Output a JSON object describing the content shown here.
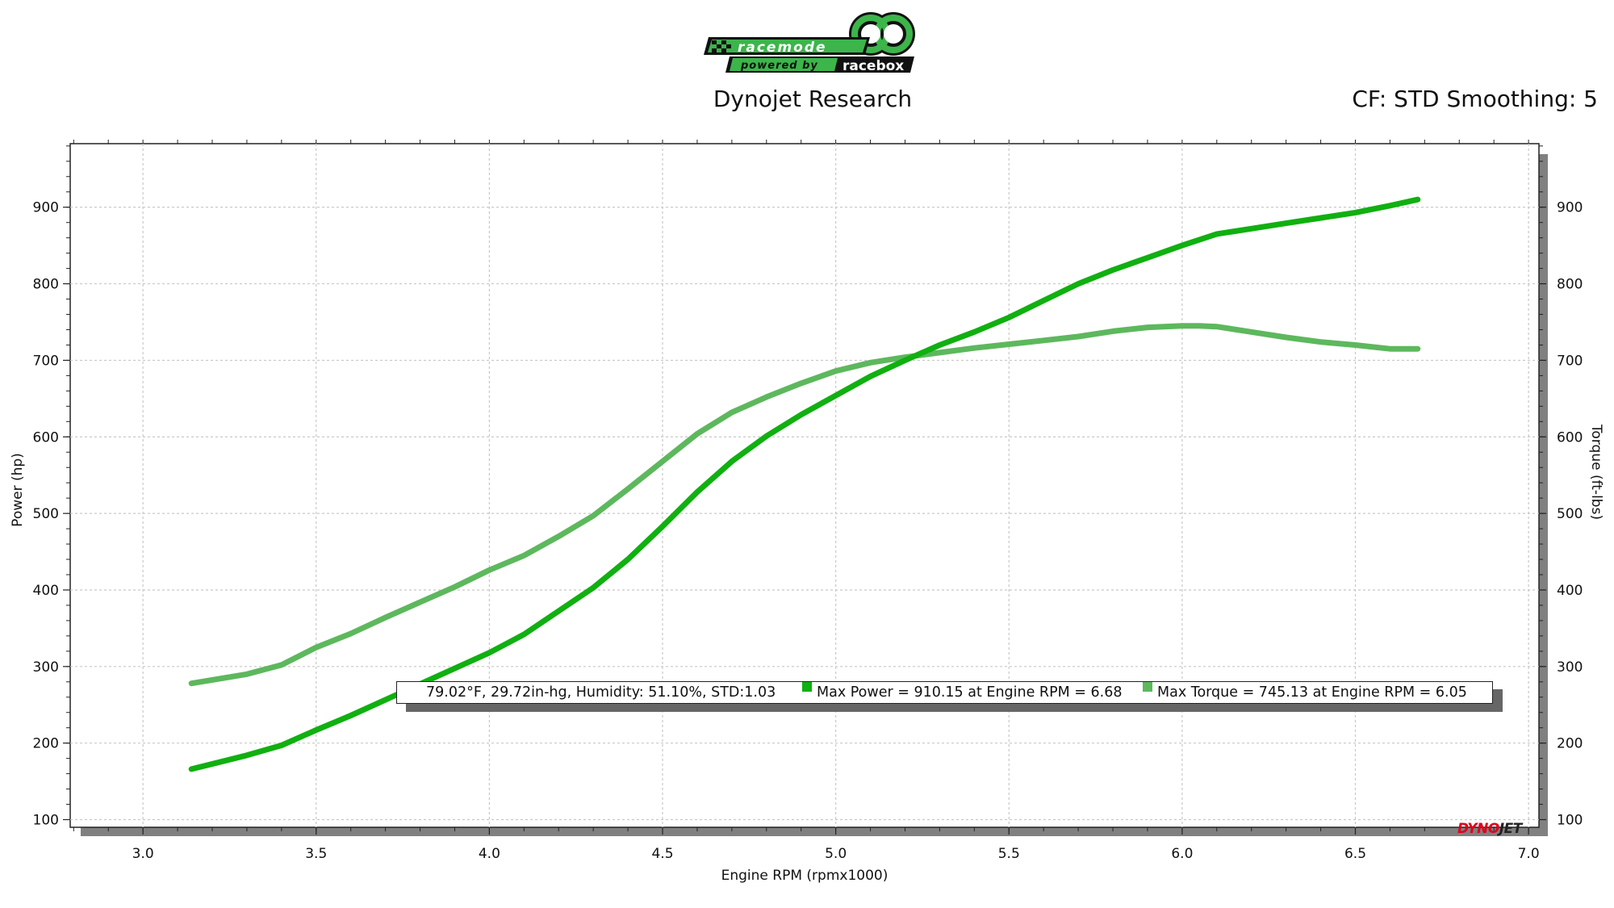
{
  "header": {
    "title": "Dynojet Research",
    "cf_text": "CF: STD Smoothing: 5",
    "logo": {
      "line1": "racemode",
      "line2_left": "powered by",
      "line2_right": "racebox",
      "colors": {
        "green": "#3cb54a",
        "black": "#111111"
      }
    }
  },
  "legend": {
    "conditions": "79.02°F, 29.72in-hg, Humidity: 51.10%, STD:1.03",
    "power_label": "Max Power = 910.15 at Engine RPM = 6.68",
    "torque_label": "Max Torque = 745.13 at Engine RPM = 6.05"
  },
  "watermark": {
    "text_left": "DYNO",
    "text_right": "JET",
    "color_left": "#e0001b",
    "color_right": "#222222"
  },
  "colors": {
    "power": "#10b010",
    "torque": "#5db85d",
    "grid": "#c8c8c8",
    "shadow": "#808080"
  },
  "chart_data": {
    "type": "line",
    "xlabel": "Engine RPM (rpmx1000)",
    "ylabel_left": "Power (hp)",
    "ylabel_right": "Torque (ft-lbs)",
    "xlim": [
      2.79,
      7.03
    ],
    "ylim": [
      90,
      983
    ],
    "x_ticks": [
      "3.0",
      "3.5",
      "4.0",
      "4.5",
      "5.0",
      "5.5",
      "6.0",
      "6.5",
      "7.0"
    ],
    "y_ticks": [
      "100",
      "200",
      "300",
      "400",
      "500",
      "600",
      "700",
      "800",
      "900"
    ],
    "grid": true,
    "series": [
      {
        "name": "Power",
        "axis": "left",
        "x": [
          3.14,
          3.3,
          3.4,
          3.5,
          3.6,
          3.8,
          4.0,
          4.1,
          4.3,
          4.4,
          4.5,
          4.6,
          4.7,
          4.8,
          4.9,
          5.0,
          5.1,
          5.2,
          5.3,
          5.4,
          5.5,
          5.6,
          5.7,
          5.8,
          5.9,
          6.0,
          6.1,
          6.2,
          6.3,
          6.4,
          6.5,
          6.6,
          6.68
        ],
        "values": [
          166,
          184,
          197,
          217,
          236,
          277,
          318,
          342,
          403,
          440,
          483,
          528,
          568,
          601,
          629,
          654,
          679,
          700,
          720,
          737,
          756,
          778,
          800,
          818,
          834,
          850,
          865,
          872,
          879,
          886,
          893,
          902,
          910
        ]
      },
      {
        "name": "Torque",
        "axis": "right",
        "x": [
          3.14,
          3.3,
          3.4,
          3.5,
          3.6,
          3.7,
          3.8,
          3.9,
          4.0,
          4.1,
          4.2,
          4.3,
          4.4,
          4.5,
          4.6,
          4.7,
          4.8,
          4.9,
          5.0,
          5.1,
          5.2,
          5.3,
          5.4,
          5.5,
          5.6,
          5.7,
          5.8,
          5.9,
          6.0,
          6.05,
          6.1,
          6.2,
          6.3,
          6.4,
          6.5,
          6.6,
          6.68
        ],
        "values": [
          278,
          290,
          302,
          325,
          343,
          364,
          384,
          404,
          426,
          445,
          470,
          497,
          532,
          568,
          604,
          632,
          652,
          670,
          686,
          697,
          704,
          710,
          716,
          721,
          726,
          731,
          738,
          743,
          745,
          745,
          744,
          737,
          730,
          724,
          720,
          715,
          715
        ]
      }
    ]
  }
}
